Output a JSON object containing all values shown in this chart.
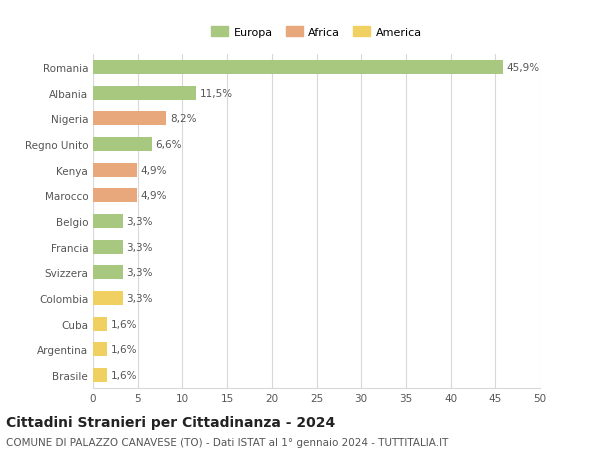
{
  "categories": [
    "Romania",
    "Albania",
    "Nigeria",
    "Regno Unito",
    "Kenya",
    "Marocco",
    "Belgio",
    "Francia",
    "Svizzera",
    "Colombia",
    "Cuba",
    "Argentina",
    "Brasile"
  ],
  "values": [
    45.9,
    11.5,
    8.2,
    6.6,
    4.9,
    4.9,
    3.3,
    3.3,
    3.3,
    3.3,
    1.6,
    1.6,
    1.6
  ],
  "labels": [
    "45,9%",
    "11,5%",
    "8,2%",
    "6,6%",
    "4,9%",
    "4,9%",
    "3,3%",
    "3,3%",
    "3,3%",
    "3,3%",
    "1,6%",
    "1,6%",
    "1,6%"
  ],
  "colors": [
    "#a8c880",
    "#a8c880",
    "#e8a87c",
    "#a8c880",
    "#e8a87c",
    "#e8a87c",
    "#a8c880",
    "#a8c880",
    "#a8c880",
    "#f0d060",
    "#f0d060",
    "#f0d060",
    "#f0d060"
  ],
  "legend": [
    {
      "label": "Europa",
      "color": "#a8c880"
    },
    {
      "label": "Africa",
      "color": "#e8a87c"
    },
    {
      "label": "America",
      "color": "#f0d060"
    }
  ],
  "xlim": [
    0,
    50
  ],
  "xticks": [
    0,
    5,
    10,
    15,
    20,
    25,
    30,
    35,
    40,
    45,
    50
  ],
  "title": "Cittadini Stranieri per Cittadinanza - 2024",
  "subtitle": "COMUNE DI PALAZZO CANAVESE (TO) - Dati ISTAT al 1° gennaio 2024 - TUTTITALIA.IT",
  "bg_color": "#ffffff",
  "grid_color": "#d8d8d8",
  "bar_height": 0.55,
  "label_fontsize": 7.5,
  "tick_fontsize": 7.5,
  "title_fontsize": 10,
  "subtitle_fontsize": 7.5
}
